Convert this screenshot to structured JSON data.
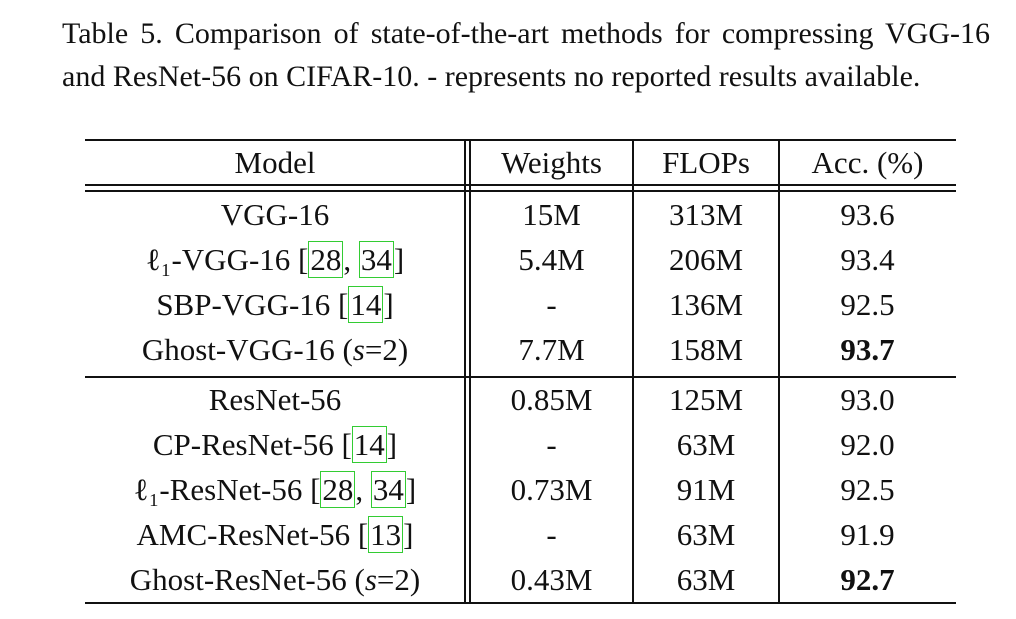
{
  "caption": "Table 5. Comparison of state-of-the-art methods for compressing VGG-16 and ResNet-56 on CIFAR-10.  - represents no reported results available.",
  "table": {
    "header": [
      "Model",
      "Weights",
      "FLOPs",
      "Acc. (%)"
    ],
    "groups": [
      {
        "rows": [
          {
            "model": [
              {
                "text": "VGG-16"
              }
            ],
            "weights": "15M",
            "flops": "313M",
            "acc": "93.6"
          },
          {
            "model": [
              {
                "text": "ℓ₁-VGG-16 ["
              },
              {
                "text": "28",
                "ref": true
              },
              {
                "text": ", "
              },
              {
                "text": "34",
                "ref": true
              },
              {
                "text": "]"
              }
            ],
            "weights": "5.4M",
            "flops": "206M",
            "acc": "93.4"
          },
          {
            "model": [
              {
                "text": "SBP-VGG-16 ["
              },
              {
                "text": "14",
                "ref": true
              },
              {
                "text": "]"
              }
            ],
            "weights": "-",
            "flops": "136M",
            "acc": "92.5"
          },
          {
            "model": [
              {
                "text": "Ghost-VGG-16 ("
              },
              {
                "text": "s",
                "italic": true
              },
              {
                "text": "=2)"
              }
            ],
            "weights": "7.7M",
            "flops": "158M",
            "acc": "93.7",
            "bold": true
          }
        ]
      },
      {
        "rows": [
          {
            "model": [
              {
                "text": "ResNet-56"
              }
            ],
            "weights": "0.85M",
            "flops": "125M",
            "acc": "93.0"
          },
          {
            "model": [
              {
                "text": "CP-ResNet-56 ["
              },
              {
                "text": "14",
                "ref": true
              },
              {
                "text": "]"
              }
            ],
            "weights": "-",
            "flops": "63M",
            "acc": "92.0"
          },
          {
            "model": [
              {
                "text": "ℓ₁-ResNet-56 ["
              },
              {
                "text": "28",
                "ref": true
              },
              {
                "text": ", "
              },
              {
                "text": "34",
                "ref": true
              },
              {
                "text": "]"
              }
            ],
            "weights": "0.73M",
            "flops": "91M",
            "acc": "92.5"
          },
          {
            "model": [
              {
                "text": "AMC-ResNet-56 ["
              },
              {
                "text": "13",
                "ref": true
              },
              {
                "text": "]"
              }
            ],
            "weights": "-",
            "flops": "63M",
            "acc": "91.9"
          },
          {
            "model": [
              {
                "text": "Ghost-ResNet-56 ("
              },
              {
                "text": "s",
                "italic": true
              },
              {
                "text": "=2)"
              }
            ],
            "weights": "0.43M",
            "flops": "63M",
            "acc": "92.7",
            "bold": true
          }
        ]
      }
    ]
  }
}
